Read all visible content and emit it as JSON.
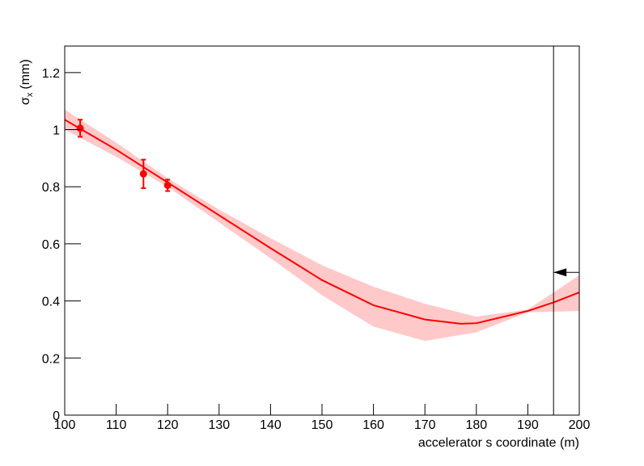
{
  "chart_data": {
    "type": "fit",
    "xlabel": "accelerator s coordinate (m)",
    "ylabel": {
      "symbol": "σ",
      "subscript": "x",
      "unit": "(mm)"
    },
    "xlim": [
      100,
      200
    ],
    "ylim": [
      0,
      1.293
    ],
    "xticks": [
      100,
      110,
      120,
      130,
      140,
      150,
      160,
      170,
      180,
      190,
      200
    ],
    "yticks": [
      0,
      0.2,
      0.4,
      0.6,
      0.8,
      1,
      1.2
    ],
    "color": "#ff0000",
    "band_color": "#ffc9c9",
    "fit": {
      "x": [
        100,
        110,
        120,
        130,
        140,
        150,
        160,
        170,
        177,
        180,
        190,
        195,
        200
      ],
      "values": [
        1.035,
        0.93,
        0.815,
        0.7,
        0.585,
        0.473,
        0.385,
        0.335,
        0.32,
        0.322,
        0.365,
        0.395,
        0.43
      ]
    },
    "band": {
      "x": [
        100,
        110,
        120,
        130,
        140,
        150,
        160,
        170,
        180,
        190,
        200
      ],
      "upper": [
        1.07,
        0.955,
        0.83,
        0.72,
        0.62,
        0.525,
        0.45,
        0.39,
        0.345,
        0.37,
        0.49
      ],
      "lower": [
        1.0,
        0.905,
        0.8,
        0.675,
        0.55,
        0.42,
        0.31,
        0.26,
        0.29,
        0.36,
        0.365
      ]
    },
    "points": {
      "x": [
        103,
        115.3,
        120
      ],
      "values": [
        1.005,
        0.845,
        0.805
      ],
      "errors": [
        0.03,
        0.05,
        0.02
      ]
    },
    "vline": 195,
    "arrow": {
      "y": 0.5,
      "from": 200,
      "to": 195
    }
  }
}
